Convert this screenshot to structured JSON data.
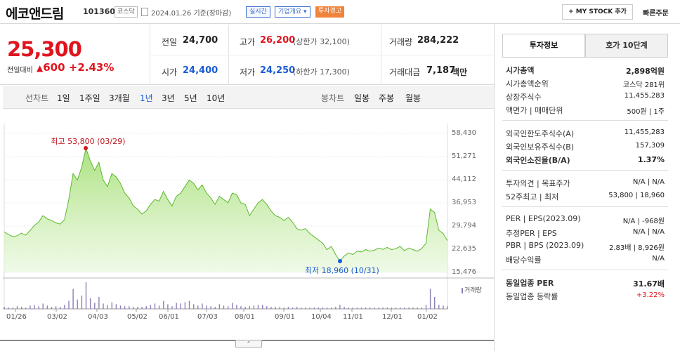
{
  "header": {
    "name": "에코앤드림",
    "code": "101360",
    "market": "코스닥",
    "date": "2024.01.26",
    "basis": "기준(장마감)",
    "realtime": "실시간",
    "company_info": "기업개요",
    "warning": "투자경고",
    "my_stock": "+ MY STOCK 추가",
    "fast_order": "빠른주문"
  },
  "price": {
    "current": "25,300",
    "change_label": "전일대비",
    "change": "600",
    "change_pct": "+2.43%",
    "prev_close_label": "전일",
    "prev_close": "24,700",
    "high_label": "고가",
    "high": "26,200",
    "upper_limit": "(상한가 32,100)",
    "volume_label": "거래량",
    "volume": "284,222",
    "open_label": "시가",
    "open": "24,400",
    "low_label": "저가",
    "low": "24,250",
    "lower_limit": "(하한가 17,300)",
    "amount_label": "거래대금",
    "amount": "7,187",
    "amount_unit": "백만"
  },
  "period_bar": {
    "line_chart": "선차트",
    "periods": [
      "1일",
      "1주일",
      "3개월",
      "1년",
      "3년",
      "5년",
      "10년"
    ],
    "active": "1년",
    "candle_chart": "봉차트",
    "candles": [
      "일봉",
      "주봉",
      "월봉"
    ]
  },
  "chart_data": {
    "type": "area",
    "y_ticks": [
      "58,430",
      "51,271",
      "44,112",
      "36,953",
      "29,794",
      "22,635",
      "15,476"
    ],
    "ylim": [
      15476,
      58430
    ],
    "x_ticks": [
      "01/26",
      "03/02",
      "04/03",
      "05/02",
      "06/01",
      "07/03",
      "08/01",
      "09/01",
      "10/04",
      "11/01",
      "12/01",
      "01/02"
    ],
    "high_annotation": "최고 53,800 (03/29)",
    "low_annotation": "최저 18,960 (10/31)",
    "volume_label": "거래량",
    "values": [
      28000,
      27200,
      26500,
      26800,
      27600,
      27000,
      28400,
      30000,
      31000,
      33000,
      32000,
      31500,
      30800,
      30400,
      31800,
      38000,
      46000,
      44000,
      48000,
      53800,
      50000,
      47000,
      49500,
      44000,
      42000,
      46000,
      45000,
      43000,
      40000,
      38500,
      36000,
      35000,
      33500,
      34500,
      36500,
      38000,
      37500,
      40500,
      38000,
      36000,
      39000,
      40000,
      42000,
      44000,
      43000,
      41000,
      42500,
      40000,
      38500,
      36500,
      39000,
      38000,
      37000,
      40000,
      39500,
      37000,
      36500,
      33000,
      35000,
      37000,
      38000,
      36500,
      34500,
      33000,
      32500,
      31500,
      32500,
      31000,
      29000,
      28500,
      29000,
      27500,
      26500,
      25500,
      24500,
      22500,
      23500,
      21000,
      18960,
      20500,
      21500,
      21000,
      22000,
      21800,
      22500,
      22000,
      22300,
      23000,
      22600,
      23200,
      22500,
      22800,
      23500,
      22200,
      23000,
      22500,
      22000,
      22800,
      24500,
      35000,
      34000,
      28500,
      27500,
      25300
    ],
    "volumes": [
      3,
      2,
      2,
      4,
      3,
      2,
      5,
      6,
      4,
      8,
      5,
      3,
      4,
      3,
      6,
      12,
      30,
      14,
      20,
      40,
      16,
      9,
      18,
      8,
      6,
      10,
      7,
      5,
      4,
      4,
      3,
      3,
      3,
      4,
      6,
      8,
      5,
      12,
      7,
      4,
      9,
      8,
      10,
      12,
      7,
      5,
      8,
      5,
      4,
      3,
      7,
      5,
      4,
      9,
      6,
      4,
      3,
      4,
      5,
      6,
      6,
      4,
      3,
      3,
      3,
      2,
      3,
      2,
      3,
      2,
      2,
      2,
      2,
      2,
      2,
      2,
      2,
      3,
      6,
      3,
      2,
      2,
      2,
      2,
      2,
      2,
      2,
      2,
      2,
      2,
      2,
      2,
      2,
      2,
      2,
      2,
      2,
      2,
      6,
      30,
      18,
      6,
      5,
      4
    ]
  },
  "invest_info": {
    "tab_active": "투자정보",
    "tab_other": "호가 10단계",
    "rows1": [
      {
        "k": "시가총액",
        "v": "2,898억원",
        "bold": true
      },
      {
        "k": "시가총액순위",
        "v": "코스닥 281위"
      },
      {
        "k": "상장주식수",
        "v": "11,455,283"
      },
      {
        "k": "액면가 | 매매단위",
        "v": "500원 | 1주"
      }
    ],
    "rows2": [
      {
        "k": "외국인한도주식수(A)",
        "v": "11,455,283"
      },
      {
        "k": "외국인보유주식수(B)",
        "v": "157,309"
      },
      {
        "k": "외국인소진율(B/A)",
        "v": "1.37%",
        "bold": true
      }
    ],
    "rows3": [
      {
        "k": "투자의견 | 목표주가",
        "v": "N/A | N/A"
      },
      {
        "k": "52주최고 | 최저",
        "v": "53,800 | 18,960"
      }
    ],
    "rows4": [
      {
        "k": "PER | EPS(2023.09)",
        "v": "N/A | -968원"
      },
      {
        "k": "추정PER | EPS",
        "v": "N/A | N/A"
      },
      {
        "k": "PBR | BPS (2023.09)",
        "v": "2.83배 | 8,926원"
      },
      {
        "k": "배당수익률",
        "v": "N/A"
      }
    ],
    "rows5": [
      {
        "k": "동일업종 PER",
        "v": "31.67배",
        "bold": true
      },
      {
        "k": "동일업종 등락률",
        "v": "+3.22%",
        "red": true
      }
    ]
  }
}
